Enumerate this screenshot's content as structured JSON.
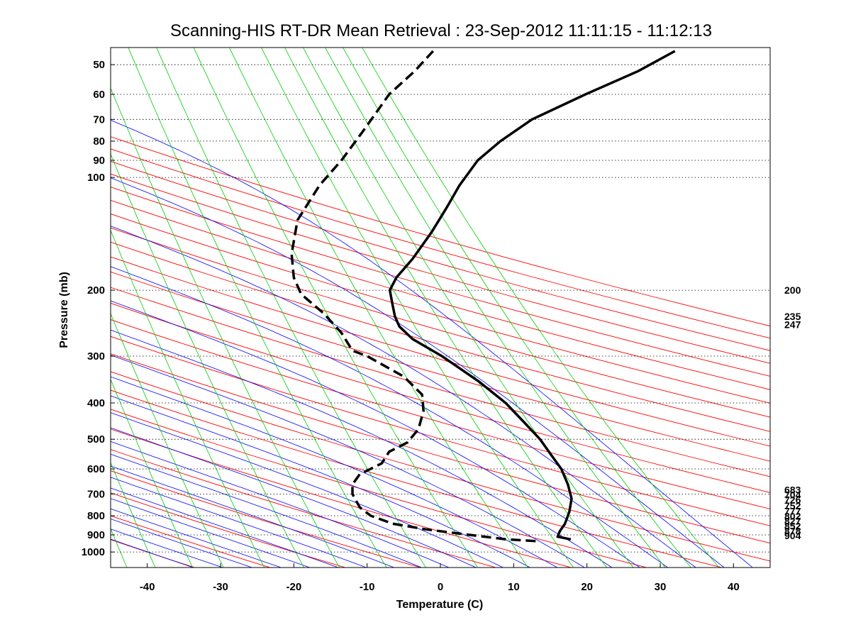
{
  "chart_data": {
    "type": "skew-t",
    "title": "Scanning-HIS RT-DR Mean Retrieval : 23-Sep-2012 11:11:15 - 11:12:13",
    "xlabel": "Temperature (C)",
    "ylabel": "Pressure (mb)",
    "xlim": [
      -45,
      45
    ],
    "ylim_mb": [
      1100,
      45
    ],
    "x_ticks": [
      -40,
      -30,
      -20,
      -10,
      0,
      10,
      20,
      30,
      40
    ],
    "x_tick_labels": [
      "-40",
      "-30",
      "-20",
      "-10",
      "0",
      "10",
      "20",
      "30",
      "40"
    ],
    "y_ticks": [
      50,
      60,
      70,
      80,
      90,
      100,
      200,
      300,
      400,
      500,
      600,
      700,
      800,
      900,
      1000
    ],
    "y_tick_labels": [
      "50",
      "60",
      "70",
      "80",
      "90",
      "100",
      "200",
      "300",
      "400",
      "500",
      "600",
      "700",
      "800",
      "900",
      "1000"
    ],
    "grid": "horizontal dotted at pressure ticks",
    "background_lines": {
      "dry_adiabats": {
        "color": "#ff0000"
      },
      "moist_adiabats": {
        "color": "#0000ff"
      },
      "mixing_ratio": {
        "color": "#00cc00"
      }
    },
    "series": [
      {
        "name": "Temperature",
        "style": "solid",
        "color": "#000000",
        "points": [
          {
            "p": 925,
            "t": 17.8
          },
          {
            "p": 910,
            "t": 16.0
          },
          {
            "p": 880,
            "t": 16.3
          },
          {
            "p": 840,
            "t": 17.0
          },
          {
            "p": 780,
            "t": 17.6
          },
          {
            "p": 720,
            "t": 17.9
          },
          {
            "p": 660,
            "t": 17.4
          },
          {
            "p": 600,
            "t": 16.5
          },
          {
            "p": 550,
            "t": 15.1
          },
          {
            "p": 500,
            "t": 13.6
          },
          {
            "p": 450,
            "t": 11.4
          },
          {
            "p": 400,
            "t": 8.9
          },
          {
            "p": 350,
            "t": 5.2
          },
          {
            "p": 300,
            "t": 0.2
          },
          {
            "p": 270,
            "t": -3.8
          },
          {
            "p": 250,
            "t": -5.6
          },
          {
            "p": 235,
            "t": -6.2
          },
          {
            "p": 220,
            "t": -6.5
          },
          {
            "p": 200,
            "t": -6.9
          },
          {
            "p": 185,
            "t": -6.0
          },
          {
            "p": 165,
            "t": -3.8
          },
          {
            "p": 140,
            "t": -1.2
          },
          {
            "p": 120,
            "t": 0.9
          },
          {
            "p": 105,
            "t": 2.6
          },
          {
            "p": 90,
            "t": 5.1
          },
          {
            "p": 80,
            "t": 8.2
          },
          {
            "p": 70,
            "t": 12.5
          },
          {
            "p": 60,
            "t": 19.8
          },
          {
            "p": 52,
            "t": 27.0
          },
          {
            "p": 46,
            "t": 32.0
          }
        ]
      },
      {
        "name": "Dewpoint",
        "style": "dashed",
        "color": "#000000",
        "points": [
          {
            "p": 935,
            "t": 13.0
          },
          {
            "p": 925,
            "t": 9.0
          },
          {
            "p": 900,
            "t": 4.0
          },
          {
            "p": 870,
            "t": -2.0
          },
          {
            "p": 840,
            "t": -6.5
          },
          {
            "p": 800,
            "t": -9.5
          },
          {
            "p": 760,
            "t": -11.0
          },
          {
            "p": 700,
            "t": -12.0
          },
          {
            "p": 660,
            "t": -12.0
          },
          {
            "p": 620,
            "t": -11.0
          },
          {
            "p": 580,
            "t": -8.0
          },
          {
            "p": 540,
            "t": -7.0
          },
          {
            "p": 510,
            "t": -4.5
          },
          {
            "p": 470,
            "t": -3.0
          },
          {
            "p": 420,
            "t": -2.3
          },
          {
            "p": 380,
            "t": -2.5
          },
          {
            "p": 340,
            "t": -5.0
          },
          {
            "p": 300,
            "t": -10.0
          },
          {
            "p": 290,
            "t": -12.0
          },
          {
            "p": 260,
            "t": -13.5
          },
          {
            "p": 230,
            "t": -16.0
          },
          {
            "p": 205,
            "t": -19.0
          },
          {
            "p": 185,
            "t": -20.0
          },
          {
            "p": 160,
            "t": -20.3
          },
          {
            "p": 130,
            "t": -19.5
          },
          {
            "p": 105,
            "t": -16.5
          },
          {
            "p": 90,
            "t": -13.5
          },
          {
            "p": 75,
            "t": -10.5
          },
          {
            "p": 60,
            "t": -7.0
          },
          {
            "p": 52,
            "t": -3.5
          },
          {
            "p": 46,
            "t": -1.0
          }
        ]
      }
    ],
    "level_labels_right": [
      {
        "p": 200,
        "label": "200"
      },
      {
        "p": 235,
        "label": "235"
      },
      {
        "p": 247,
        "label": "247"
      },
      {
        "p": 683,
        "label": "683"
      },
      {
        "p": 704,
        "label": "704"
      },
      {
        "p": 726,
        "label": "726"
      },
      {
        "p": 752,
        "label": "752"
      },
      {
        "p": 777,
        "label": "777"
      },
      {
        "p": 802,
        "label": "802"
      },
      {
        "p": 827,
        "label": "827"
      },
      {
        "p": 852,
        "label": "852"
      },
      {
        "p": 878,
        "label": "878"
      },
      {
        "p": 904,
        "label": "904"
      }
    ]
  }
}
